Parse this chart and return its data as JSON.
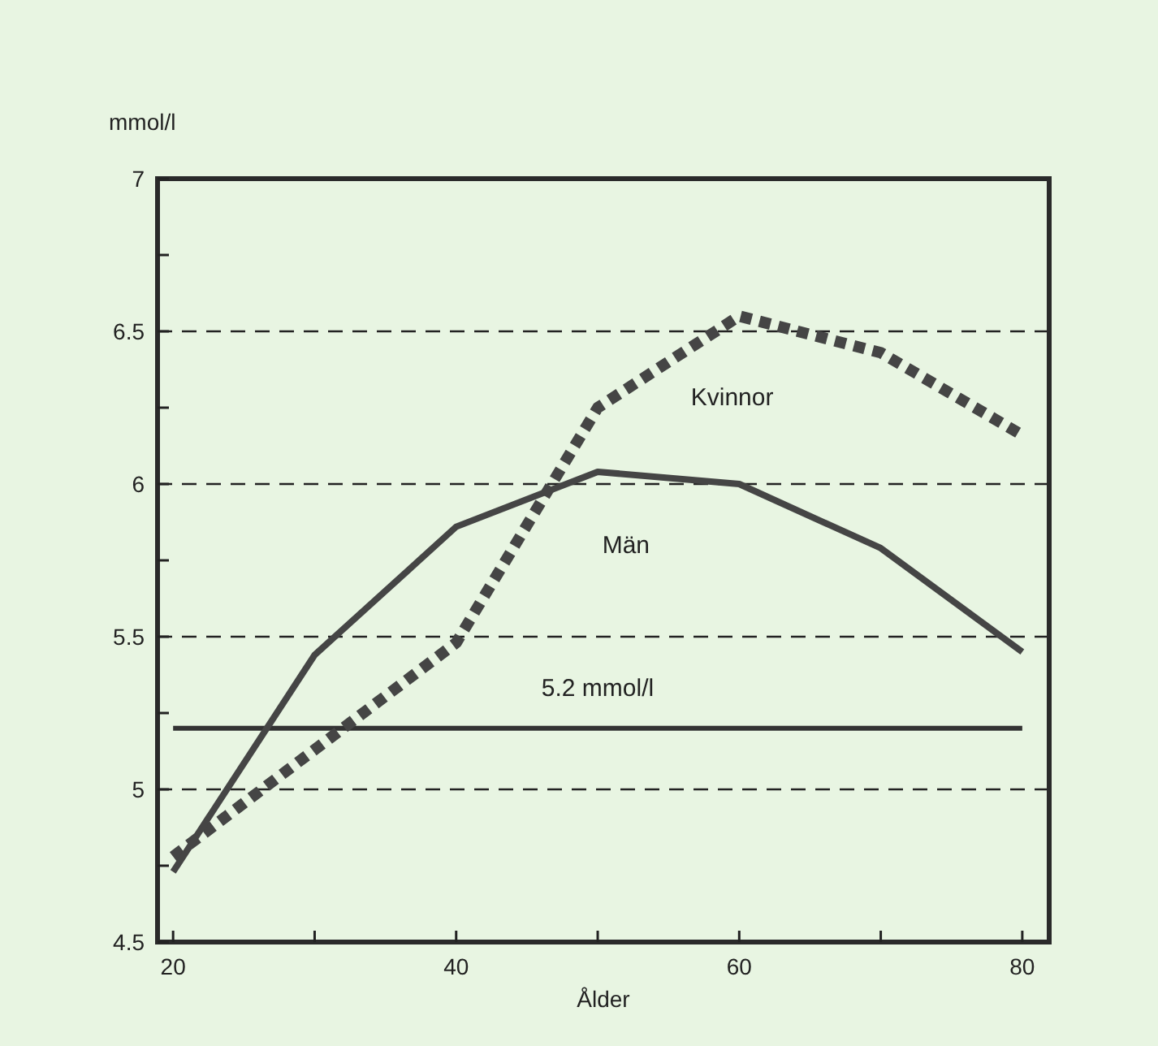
{
  "chart_data": {
    "type": "line",
    "ylabel": "mmol/l",
    "xlabel": "Ålder",
    "x": [
      20,
      30,
      40,
      50,
      60,
      70,
      80
    ],
    "series": [
      {
        "name": "Kvinnor",
        "color": "#454545",
        "values": [
          4.78,
          5.13,
          5.48,
          6.25,
          6.55,
          6.43,
          6.16
        ],
        "line_style": "dotted"
      },
      {
        "name": "Män",
        "color": "#454545",
        "values": [
          4.73,
          5.44,
          5.86,
          6.04,
          6.0,
          5.79,
          5.45
        ],
        "line_style": "solid"
      }
    ],
    "xlim": [
      18.9,
      81.9
    ],
    "xticks": [
      20,
      {
        "value": 30,
        "label": null
      },
      40,
      {
        "value": 50,
        "label": null
      },
      60,
      {
        "value": 70,
        "label": null
      },
      80
    ],
    "ylim": [
      4.5,
      7
    ],
    "yticks": [
      4.5,
      {
        "value": 4.75,
        "label": null
      },
      5,
      {
        "value": 5.25,
        "label": null
      },
      5.5,
      {
        "value": 5.75,
        "label": null
      },
      6,
      {
        "value": 6.25,
        "label": null
      },
      6.5,
      {
        "value": 6.75,
        "label": null
      },
      7
    ],
    "grid": "y",
    "marker": "none",
    "ref_lines": [
      {
        "axis": "y",
        "value": 5.2,
        "label": "5.2 mmol/l",
        "color": "#333333",
        "line_style": "solid"
      }
    ]
  }
}
